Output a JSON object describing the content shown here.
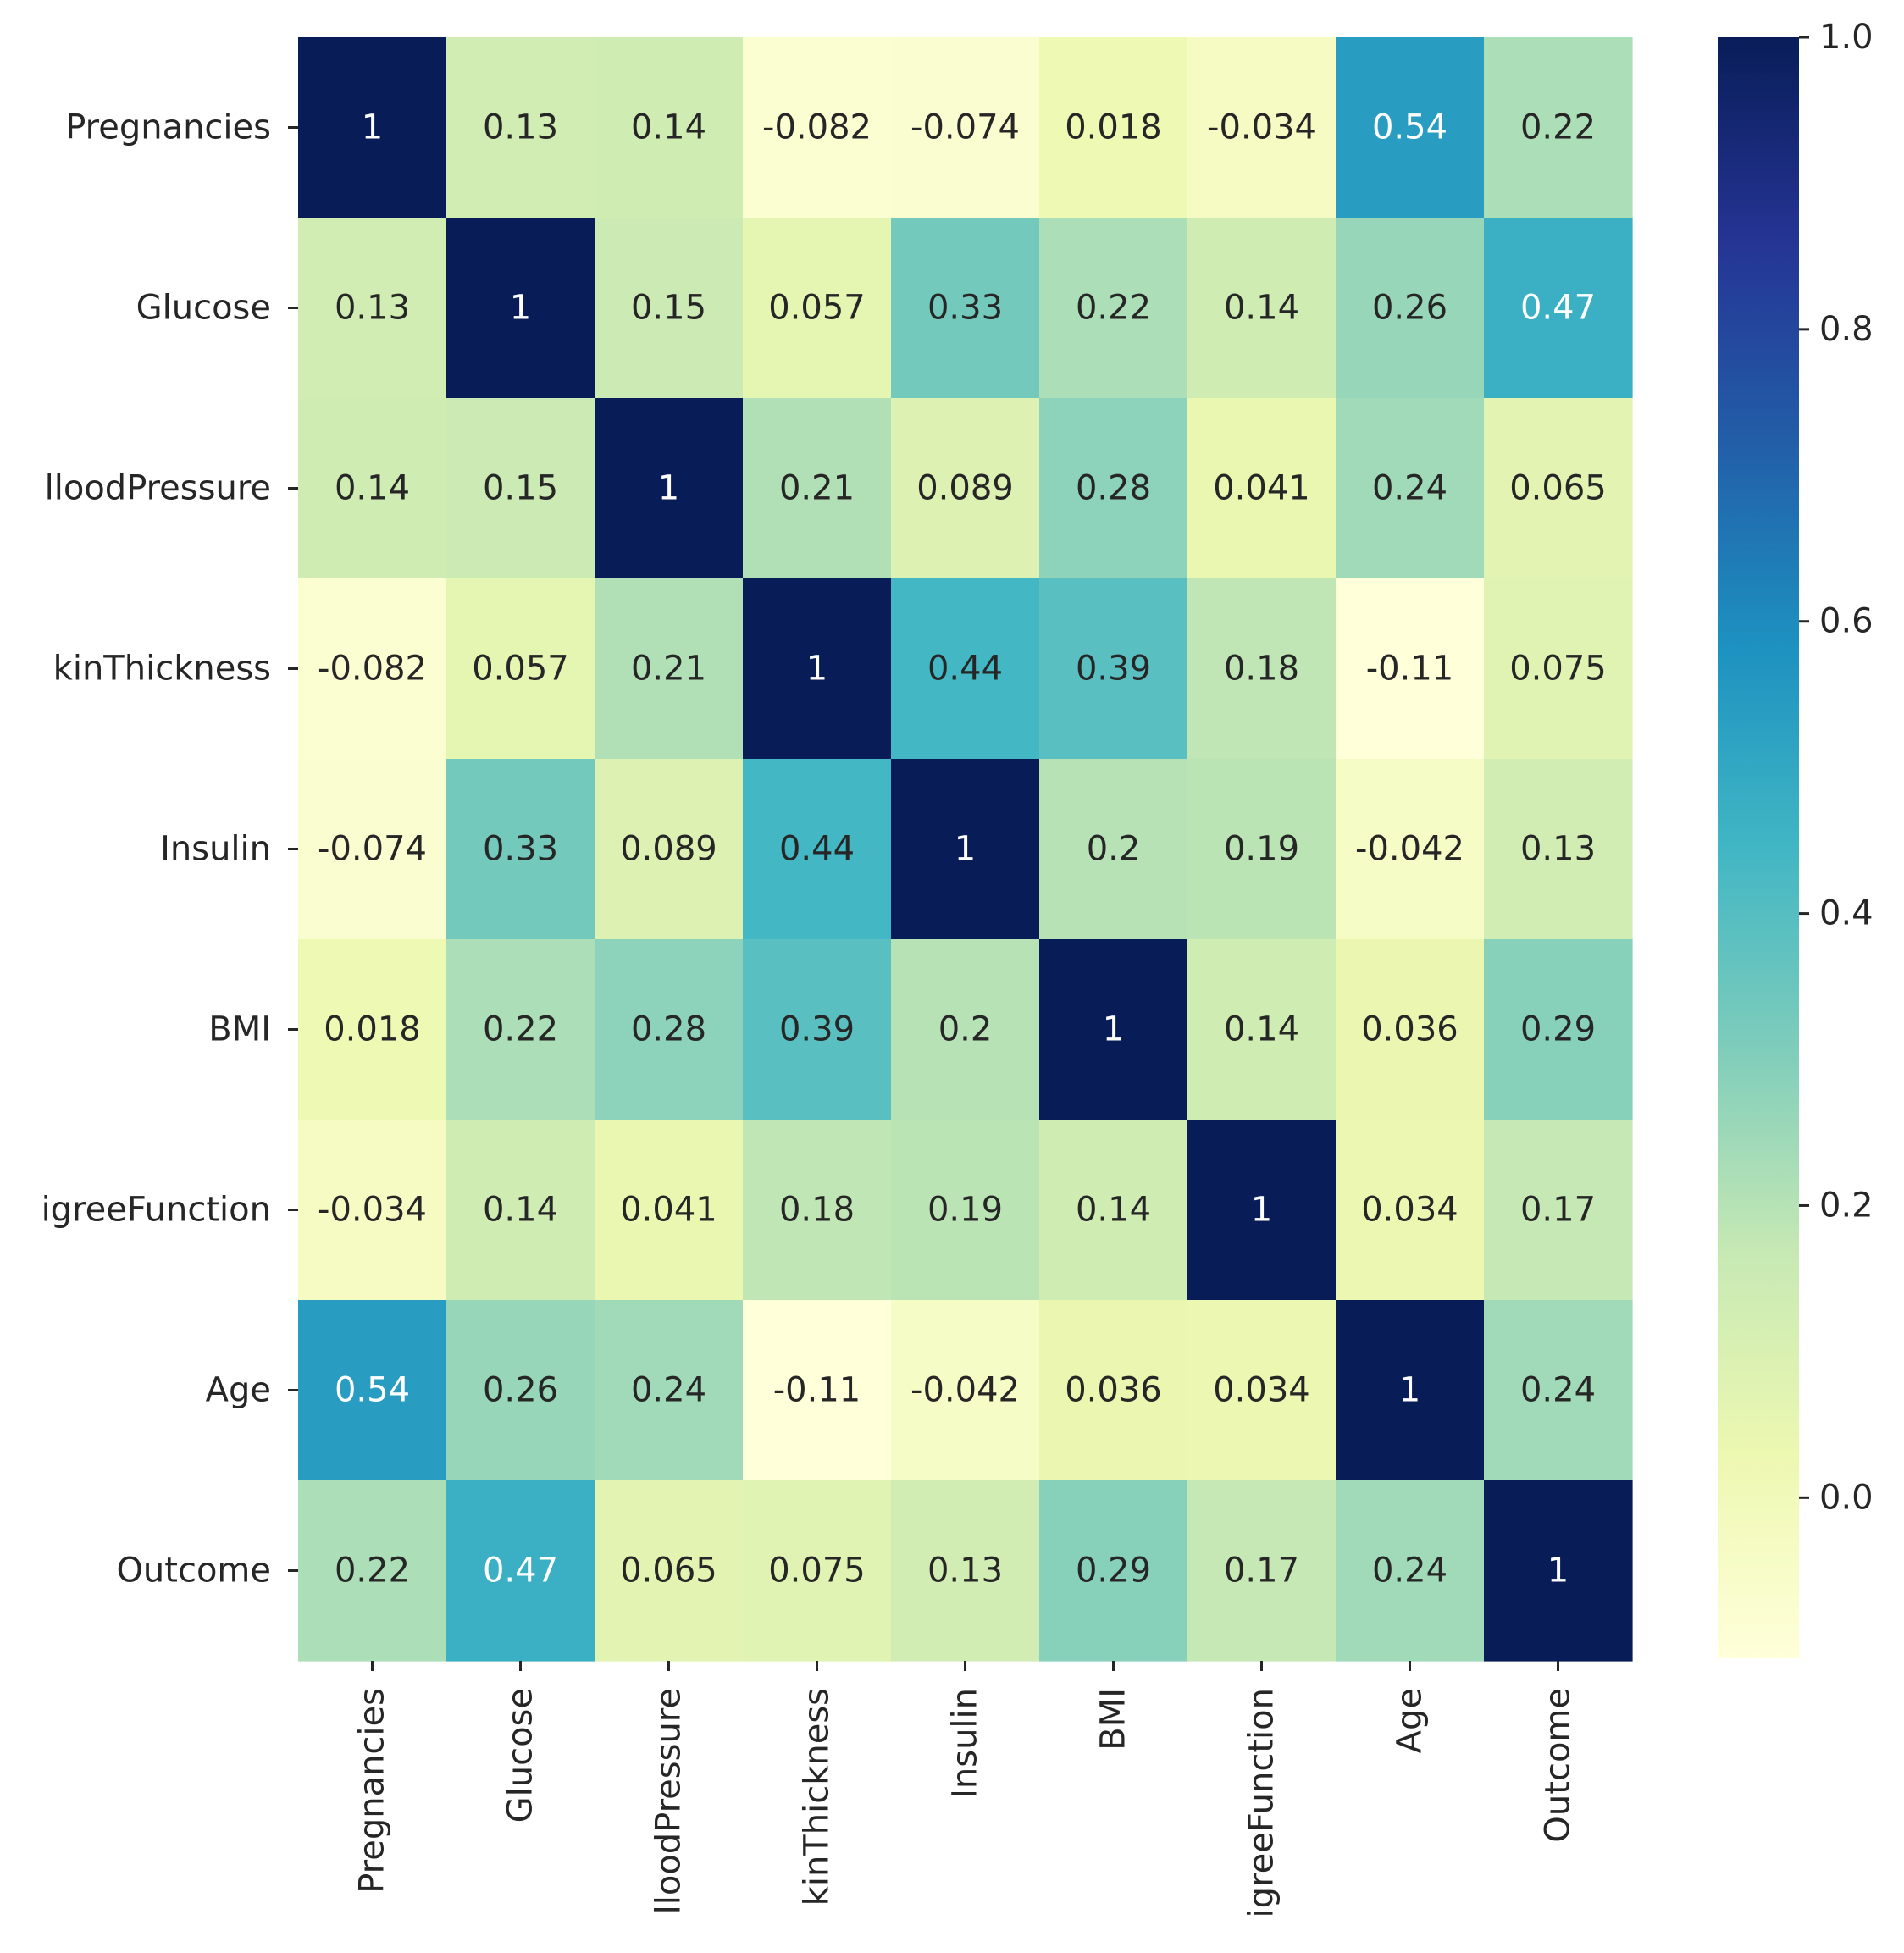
{
  "chart_data": {
    "type": "heatmap",
    "title": "",
    "row_labels": [
      "Pregnancies",
      "Glucose",
      "BloodPressure",
      "SkinThickness",
      "Insulin",
      "BMI",
      "DiabetesPedigreeFunction",
      "Age",
      "Outcome"
    ],
    "col_labels": [
      "Pregnancies",
      "Glucose",
      "BloodPressure",
      "SkinThickness",
      "Insulin",
      "BMI",
      "DiabetesPedigreeFunction",
      "Age",
      "Outcome"
    ],
    "visible_row_labels": [
      "Pregnancies",
      "Glucose",
      "lloodPressure",
      "kinThickness",
      "Insulin",
      "BMI",
      "igreeFunction",
      "Age",
      "Outcome"
    ],
    "visible_col_labels": [
      "Pregnancies",
      "Glucose",
      "lloodPressure",
      "kinThickness",
      "Insulin",
      "BMI",
      "igreeFunction",
      "Age",
      "Outcome"
    ],
    "values": [
      [
        1,
        0.13,
        0.14,
        -0.082,
        -0.074,
        0.018,
        -0.034,
        0.54,
        0.22
      ],
      [
        0.13,
        1,
        0.15,
        0.057,
        0.33,
        0.22,
        0.14,
        0.26,
        0.47
      ],
      [
        0.14,
        0.15,
        1,
        0.21,
        0.089,
        0.28,
        0.041,
        0.24,
        0.065
      ],
      [
        -0.082,
        0.057,
        0.21,
        1,
        0.44,
        0.39,
        0.18,
        -0.11,
        0.075
      ],
      [
        -0.074,
        0.33,
        0.089,
        0.44,
        1,
        0.2,
        0.19,
        -0.042,
        0.13
      ],
      [
        0.018,
        0.22,
        0.28,
        0.39,
        0.2,
        1,
        0.14,
        0.036,
        0.29
      ],
      [
        -0.034,
        0.14,
        0.041,
        0.18,
        0.19,
        0.14,
        1,
        0.034,
        0.17
      ],
      [
        0.54,
        0.26,
        0.24,
        -0.11,
        -0.042,
        0.036,
        0.034,
        1,
        0.24
      ],
      [
        0.22,
        0.47,
        0.065,
        0.075,
        0.13,
        0.29,
        0.17,
        0.24,
        1
      ]
    ],
    "labels": [
      [
        "1",
        "0.13",
        "0.14",
        "-0.082",
        "-0.074",
        "0.018",
        "-0.034",
        "0.54",
        "0.22"
      ],
      [
        "0.13",
        "1",
        "0.15",
        "0.057",
        "0.33",
        "0.22",
        "0.14",
        "0.26",
        "0.47"
      ],
      [
        "0.14",
        "0.15",
        "1",
        "0.21",
        "0.089",
        "0.28",
        "0.041",
        "0.24",
        "0.065"
      ],
      [
        "-0.082",
        "0.057",
        "0.21",
        "1",
        "0.44",
        "0.39",
        "0.18",
        "-0.11",
        "0.075"
      ],
      [
        "-0.074",
        "0.33",
        "0.089",
        "0.44",
        "1",
        "0.2",
        "0.19",
        "-0.042",
        "0.13"
      ],
      [
        "0.018",
        "0.22",
        "0.28",
        "0.39",
        "0.2",
        "1",
        "0.14",
        "0.036",
        "0.29"
      ],
      [
        "-0.034",
        "0.14",
        "0.041",
        "0.18",
        "0.19",
        "0.14",
        "1",
        "0.034",
        "0.17"
      ],
      [
        "0.54",
        "0.26",
        "0.24",
        "-0.11",
        "-0.042",
        "0.036",
        "0.034",
        "1",
        "0.24"
      ],
      [
        "0.22",
        "0.47",
        "0.065",
        "0.075",
        "0.13",
        "0.29",
        "0.17",
        "0.24",
        "1"
      ]
    ],
    "colormap": "YlGnBu",
    "vmin": -0.11,
    "vmax": 1.0,
    "colorbar_ticks": [
      0.0,
      0.2,
      0.4,
      0.6,
      0.8,
      1.0
    ],
    "colorbar_tick_labels": [
      "0.0",
      "0.2",
      "0.4",
      "0.6",
      "0.8",
      "1.0"
    ],
    "annotation_colors": {
      "dark_text": "#262626",
      "light_text": "#ffffff"
    },
    "colormap_stops": [
      "#ffffd9",
      "#edf8b1",
      "#c7e9b4",
      "#7fcdbb",
      "#41b6c4",
      "#1d91c0",
      "#225ea8",
      "#253494",
      "#081d58"
    ]
  }
}
